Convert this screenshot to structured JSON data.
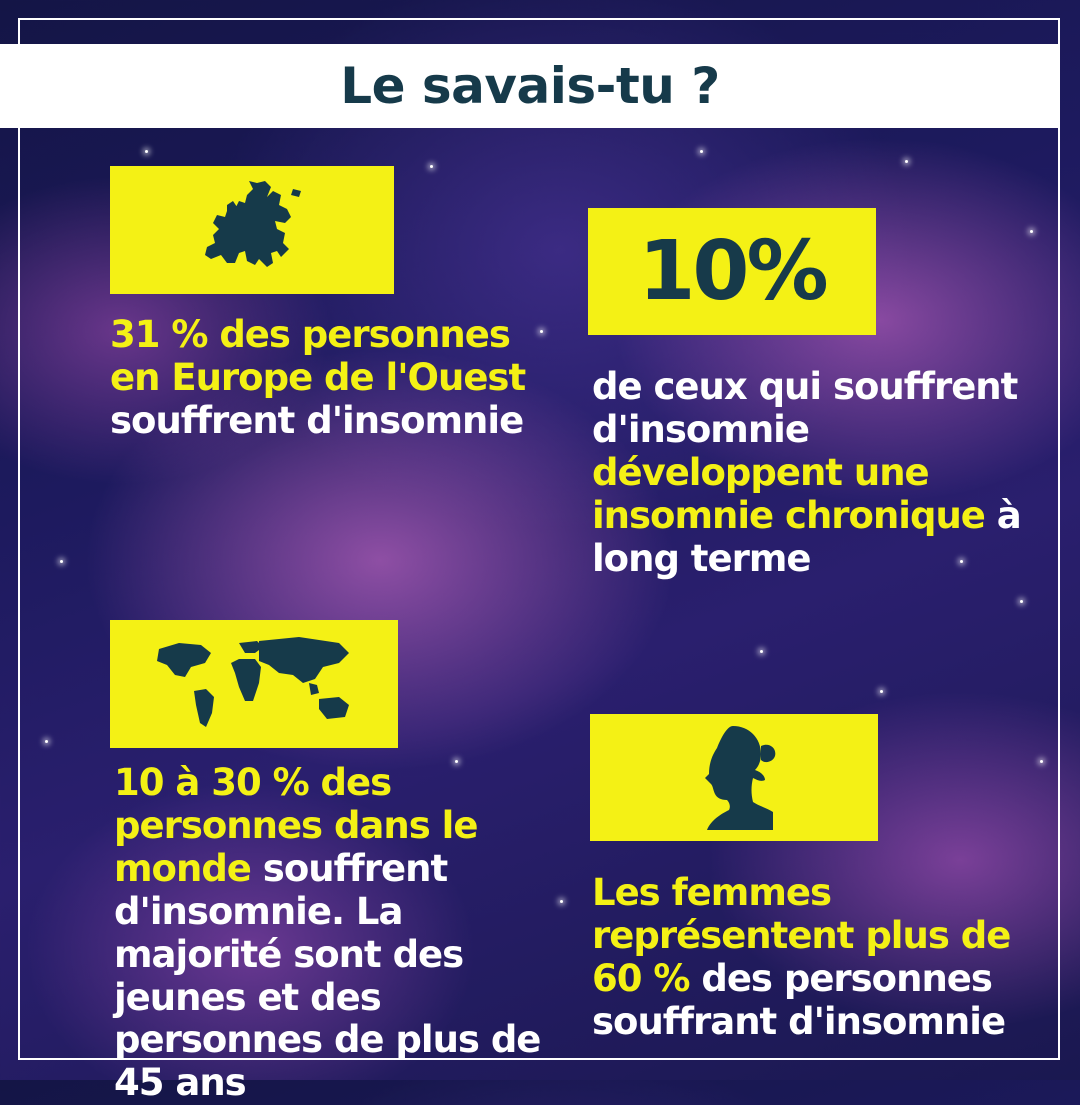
{
  "header": {
    "title": "Le savais-tu ?"
  },
  "facts": {
    "europe": {
      "icon": "europe-map-icon",
      "highlight": "31 % des personnes en Europe de l'Ouest",
      "rest": "souffrent d'insomnie"
    },
    "chronic": {
      "stat": "10%",
      "pre": "de ceux qui souffrent d'insomnie",
      "highlight": "développent une insomnie chronique",
      "post": "à long terme"
    },
    "world": {
      "icon": "world-map-icon",
      "highlight": "10 à 30 % des personnes dans le monde",
      "rest": "souffrent d'insomnie. La majorité sont des jeunes et des personnes de plus de 45 ans"
    },
    "women": {
      "icon": "woman-profile-icon",
      "highlight": "Les femmes représentent plus de 60 %",
      "rest": "des personnes souffrant d'insomnie"
    }
  },
  "colors": {
    "accent": "#f4f115",
    "dark": "#163a4a",
    "text": "#ffffff"
  }
}
